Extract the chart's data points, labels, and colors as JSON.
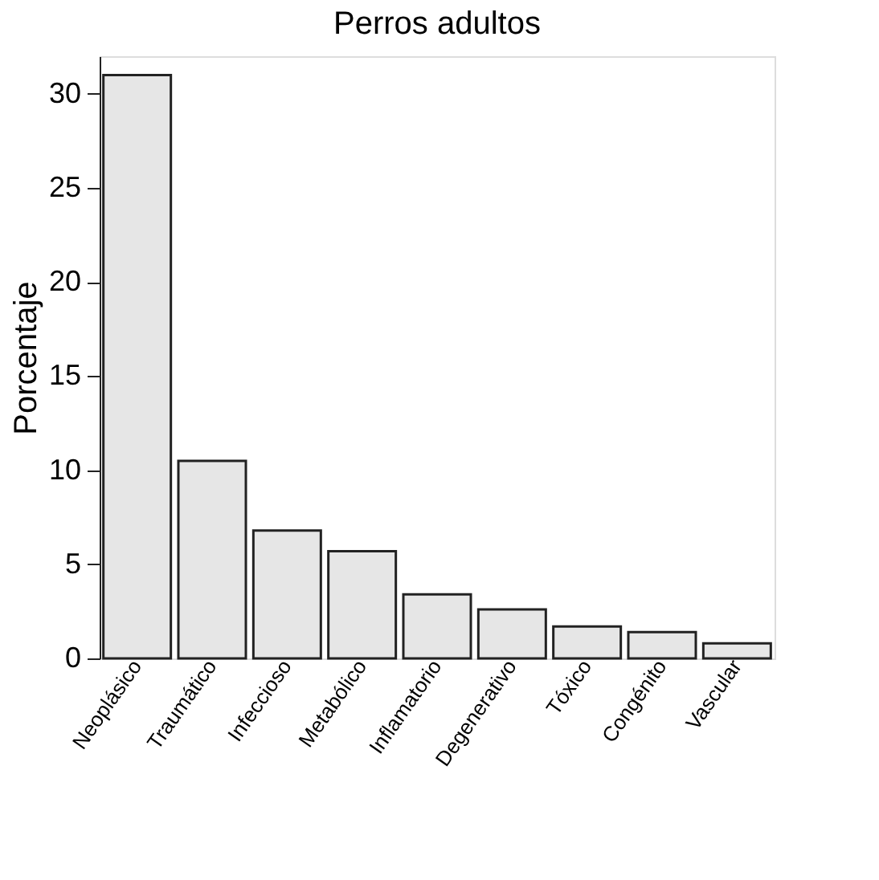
{
  "chart_data": {
    "type": "bar",
    "title": "Perros adultos",
    "ylabel": "Porcentaje",
    "categories": [
      "Neoplásico",
      "Traumático",
      "Infeccioso",
      "Metabólico",
      "Inflamatorio",
      "Degenerativo",
      "Tóxico",
      "Congénito",
      "Vascular"
    ],
    "values": [
      31.0,
      10.5,
      6.8,
      5.7,
      3.4,
      2.6,
      1.7,
      1.4,
      0.8
    ],
    "color": "#e6e6e6",
    "ylim": [
      0,
      32
    ],
    "yticks": [
      0,
      5,
      10,
      15,
      20,
      25,
      30
    ],
    "grid": false
  }
}
